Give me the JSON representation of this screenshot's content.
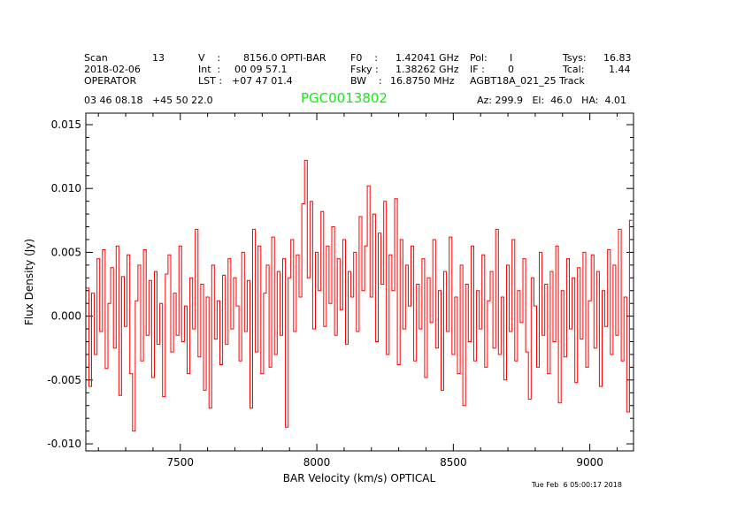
{
  "header": {
    "scan_label": "Scan",
    "scan_value": "13",
    "date": "2018-02-06",
    "observer": "OPERATOR",
    "v_label": "V    :",
    "v_value": "8156.0 OPTI-BAR",
    "int_label": "Int  :",
    "int_value": "00 09 57.1",
    "lst_label": "LST :",
    "lst_value": "+07 47 01.4",
    "f0_label": "F0    :",
    "f0_value": "1.42041 GHz",
    "fsky_label": "Fsky :",
    "fsky_value": "1.38262 GHz",
    "bw_label": "BW    :",
    "bw_value": "16.8750 MHz",
    "pol_label": "Pol:",
    "pol_value": "I",
    "if_label": "IF :",
    "if_value": "0",
    "project": "AGBT18A_021_25 Track",
    "tsys_label": "Tsys:",
    "tsys_value": "16.83",
    "tcal_label": "Tcal:",
    "tcal_value": "1.44",
    "coords": "03 46 08.18   +45 50 22.0",
    "source": "PGC0013802",
    "az_el_ha": "Az: 299.9   El:  46.0   HA:  4.01"
  },
  "footer": {
    "timestamp": "Tue Feb  6 05:00:17 2018"
  },
  "colors": {
    "spectrum": "#ff0000",
    "source": "#1ee61e"
  },
  "chart_data": {
    "type": "line",
    "title": "PGC0013802",
    "xlabel": "BAR Velocity (km/s) OPTICAL",
    "ylabel": "Flux Density (Jy)",
    "xlim": [
      7154,
      9160
    ],
    "ylim": [
      -0.01055,
      0.0159
    ],
    "xticks": [
      7500,
      8000,
      8500,
      9000
    ],
    "xtick_labels": [
      "7500",
      "8000",
      "8500",
      "9000"
    ],
    "yticks": [
      -0.01,
      -0.005,
      0.0,
      0.005,
      0.01,
      0.015
    ],
    "ytick_labels": [
      "-0.010",
      "-0.005",
      "0.000",
      "0.005",
      "0.010",
      "0.015"
    ],
    "grid": false,
    "series": [
      {
        "name": "spectrum",
        "x_start": 7160,
        "x_step": 10,
        "y": [
          0.0022,
          -0.0055,
          0.0018,
          -0.003,
          0.0045,
          -0.0012,
          0.0052,
          -0.0041,
          0.001,
          0.0038,
          -0.0025,
          0.0055,
          -0.0062,
          0.0031,
          -0.0008,
          0.0048,
          -0.0045,
          -0.009,
          0.0012,
          0.004,
          -0.0035,
          0.0052,
          -0.0015,
          0.0028,
          -0.0048,
          0.0035,
          -0.0022,
          0.001,
          -0.0063,
          0.0033,
          0.0048,
          -0.0028,
          0.0018,
          -0.0015,
          0.0055,
          -0.002,
          0.0008,
          -0.0045,
          0.003,
          -0.001,
          0.0068,
          -0.0032,
          0.0025,
          -0.0058,
          0.0015,
          -0.0072,
          0.004,
          -0.0018,
          0.0012,
          -0.0038,
          0.0032,
          -0.0022,
          0.0045,
          -0.001,
          0.003,
          0.0008,
          -0.0035,
          0.005,
          -0.0012,
          0.0028,
          -0.0072,
          0.0068,
          -0.0028,
          0.0055,
          -0.0045,
          0.0018,
          0.004,
          -0.004,
          0.0062,
          -0.003,
          0.0035,
          -0.0015,
          0.0045,
          -0.0087,
          0.003,
          0.006,
          -0.0012,
          0.0048,
          0.0015,
          0.0088,
          0.0122,
          0.003,
          0.009,
          -0.001,
          0.005,
          0.002,
          0.0082,
          -0.0008,
          0.0055,
          0.001,
          0.007,
          -0.0015,
          0.0045,
          0.0005,
          0.006,
          -0.0022,
          0.0035,
          0.0015,
          0.005,
          -0.0012,
          0.0078,
          0.002,
          0.0055,
          0.0102,
          0.0015,
          0.008,
          -0.002,
          0.0065,
          0.0025,
          0.009,
          -0.003,
          0.0048,
          0.002,
          0.0092,
          -0.0038,
          0.006,
          -0.001,
          0.004,
          0.0008,
          0.0055,
          -0.0035,
          0.0025,
          -0.001,
          0.0045,
          -0.0048,
          0.003,
          -0.0005,
          0.006,
          -0.0025,
          0.002,
          -0.0058,
          0.0035,
          -0.0012,
          0.0062,
          -0.003,
          0.0015,
          -0.0045,
          0.004,
          -0.007,
          0.0025,
          -0.002,
          0.0055,
          -0.0035,
          0.002,
          -0.001,
          0.0048,
          -0.004,
          0.0012,
          0.0035,
          -0.0025,
          0.0068,
          -0.003,
          0.0015,
          -0.005,
          0.004,
          -0.0012,
          0.006,
          -0.0035,
          0.002,
          -0.0005,
          0.0045,
          -0.0028,
          -0.0065,
          0.003,
          0.0008,
          -0.004,
          0.005,
          -0.0015,
          0.0025,
          -0.0045,
          0.0035,
          -0.002,
          0.0055,
          -0.0068,
          0.002,
          -0.0032,
          0.0045,
          -0.001,
          0.003,
          -0.0052,
          0.0038,
          -0.0018,
          0.005,
          -0.004,
          0.0012,
          0.0048,
          -0.0025,
          0.0035,
          -0.0055,
          0.002,
          -0.0008,
          0.0052,
          -0.003,
          0.004,
          -0.0015,
          0.0068,
          -0.0035,
          0.0015,
          -0.0075,
          0.0075
        ]
      }
    ]
  }
}
